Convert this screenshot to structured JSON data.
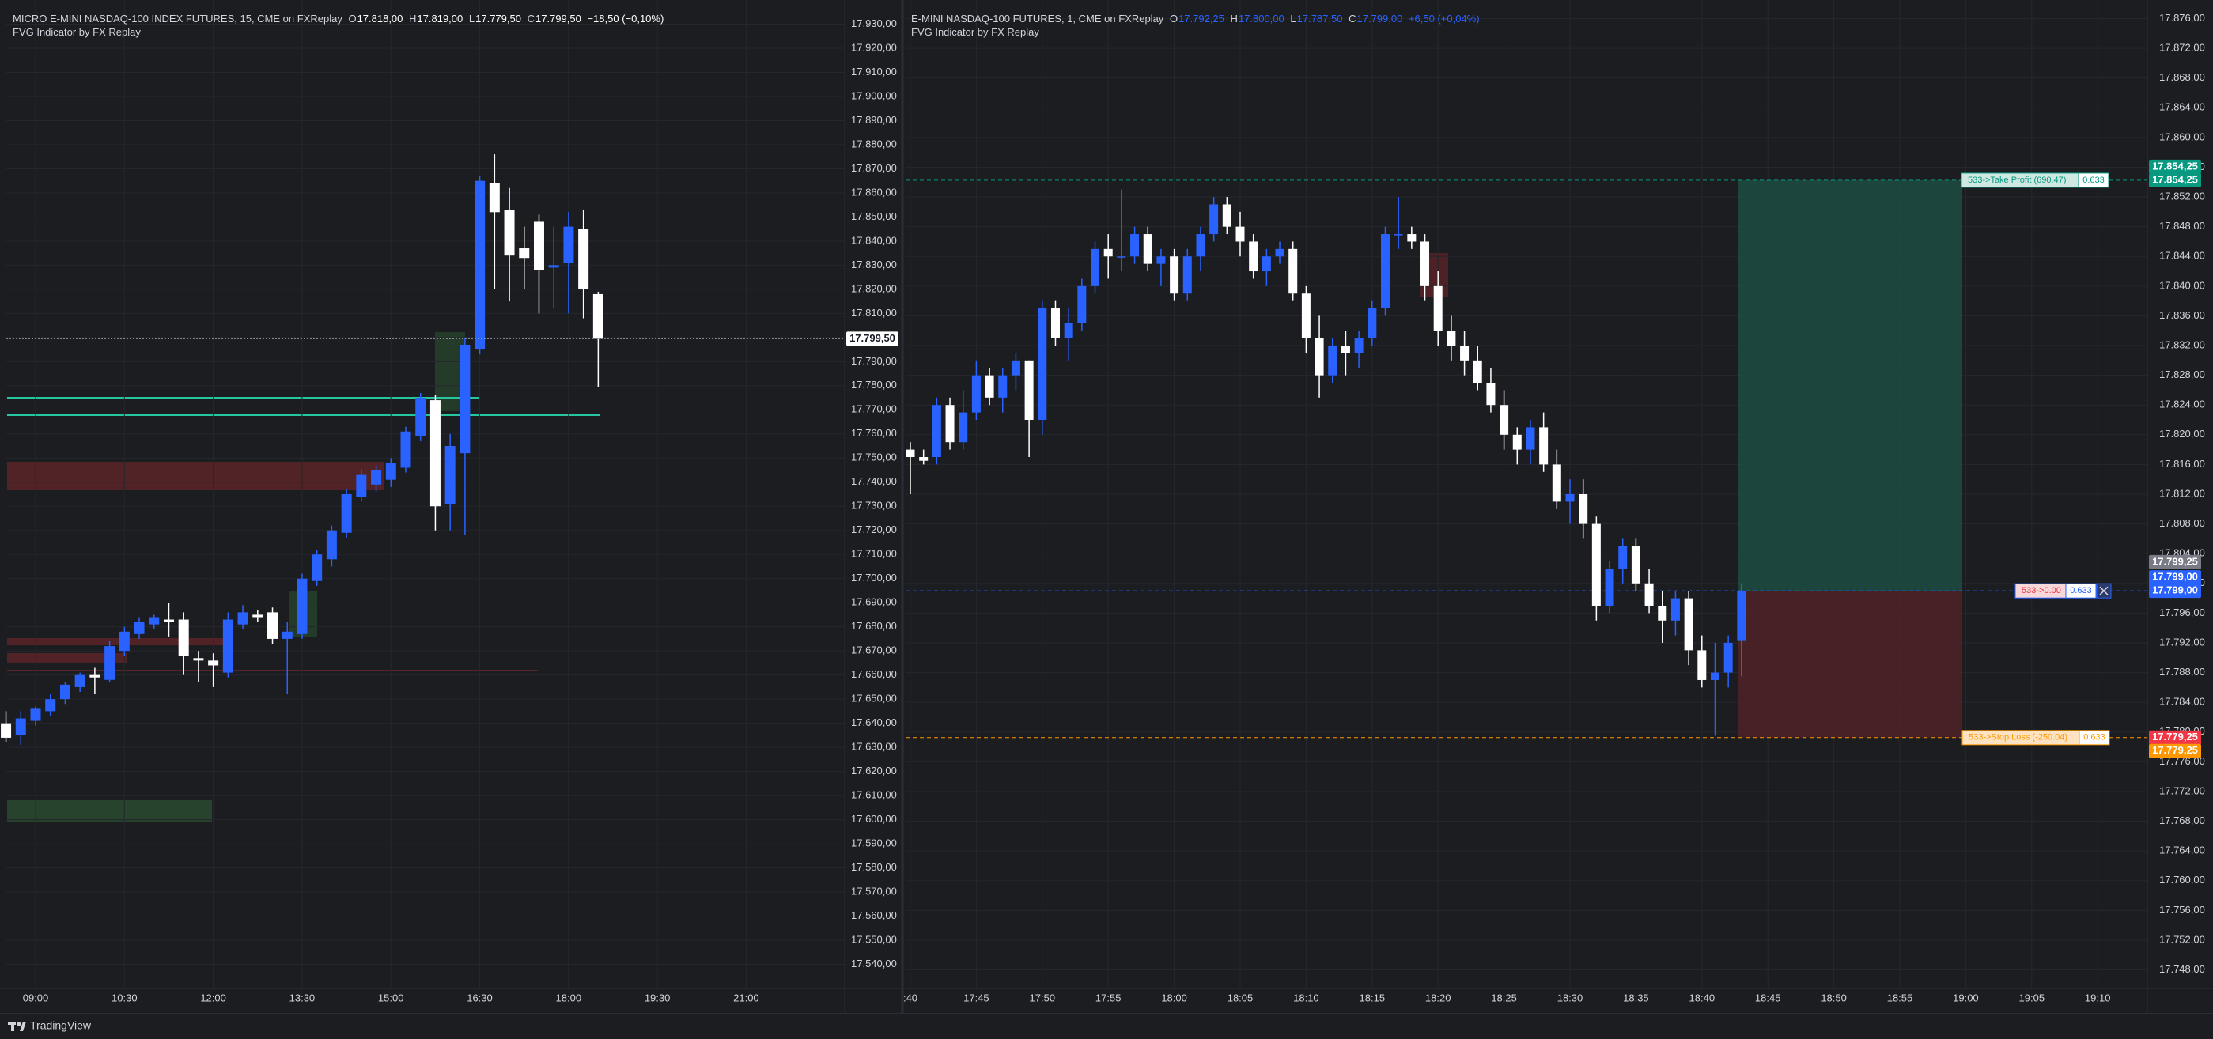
{
  "chart_data": [
    {
      "type": "candlestick",
      "title": "MICRO E-MINI NASDAQ-100 INDEX FUTURES, 15, CME on FXReplay",
      "ohlc": [
        [
          "O",
          "17.818,00"
        ],
        [
          "H",
          "17.819,00"
        ],
        [
          "L",
          "17.779,50"
        ],
        [
          "C",
          "17.799,50"
        ]
      ],
      "change": "−18,50 (−0,10%)",
      "indicator": "FVG Indicator by FX Replay",
      "up_color": "#2962ff",
      "down_color": "#ffffff",
      "value_color": "#ffffff",
      "time_labels": [
        "09:00",
        "10:30",
        "12:00",
        "13:30",
        "15:00",
        "16:30",
        "18:00",
        "19:30",
        "21:00"
      ],
      "candles": [
        [
          17640,
          17645,
          17632,
          17634
        ],
        [
          17635,
          17645,
          17631,
          17642
        ],
        [
          17641,
          17647,
          17639,
          17646
        ],
        [
          17645,
          17652,
          17643,
          17650
        ],
        [
          17650,
          17657,
          17648,
          17656
        ],
        [
          17655,
          17661,
          17653,
          17660
        ],
        [
          17660,
          17663,
          17652,
          17659
        ],
        [
          17658,
          17674,
          17657,
          17672
        ],
        [
          17670,
          17680,
          17668,
          17678
        ],
        [
          17677,
          17684,
          17675,
          17682
        ],
        [
          17681,
          17685,
          17679,
          17684
        ],
        [
          17683,
          17690,
          17676,
          17682
        ],
        [
          17683,
          17686,
          17660,
          17668
        ],
        [
          17667,
          17670,
          17657,
          17666
        ],
        [
          17666,
          17669,
          17655,
          17664
        ],
        [
          17661,
          17686,
          17659,
          17683
        ],
        [
          17681,
          17689,
          17679,
          17686
        ],
        [
          17685,
          17687,
          17682,
          17684
        ],
        [
          17686,
          17688,
          17673,
          17675
        ],
        [
          17675,
          17682,
          17652,
          17678
        ],
        [
          17677,
          17702,
          17675,
          17700
        ],
        [
          17699,
          17712,
          17697,
          17710
        ],
        [
          17708,
          17722,
          17705,
          17720
        ],
        [
          17719,
          17737,
          17717,
          17735
        ],
        [
          17734,
          17745,
          17732,
          17743
        ],
        [
          17739,
          17747,
          17736,
          17745
        ],
        [
          17741,
          17750,
          17738,
          17748
        ],
        [
          17746,
          17763,
          17744,
          17761
        ],
        [
          17759,
          17777,
          17757,
          17775
        ],
        [
          17774,
          17776,
          17720,
          17730
        ],
        [
          17731,
          17760,
          17720,
          17755
        ],
        [
          17752,
          17800,
          17718,
          17797
        ],
        [
          17795,
          17867,
          17793,
          17865
        ],
        [
          17864,
          17876,
          17820,
          17852
        ],
        [
          17853,
          17862,
          17815,
          17834
        ],
        [
          17837,
          17846,
          17820,
          17833
        ],
        [
          17848,
          17851,
          17810,
          17828
        ],
        [
          17829,
          17846,
          17812,
          17830
        ],
        [
          17831,
          17852,
          17810,
          17846
        ],
        [
          17845,
          17853,
          17808,
          17820
        ],
        [
          17818,
          17819,
          17779.5,
          17799.5
        ]
      ],
      "ylim": [
        17530,
        17940
      ],
      "yticks": [
        {
          "value": 17540,
          "label": "17.540,00"
        },
        {
          "value": 17550,
          "label": "17.550,00"
        },
        {
          "value": 17560,
          "label": "17.560,00"
        },
        {
          "value": 17570,
          "label": "17.570,00"
        },
        {
          "value": 17580,
          "label": "17.580,00"
        },
        {
          "value": 17590,
          "label": "17.590,00"
        },
        {
          "value": 17600,
          "label": "17.600,00"
        },
        {
          "value": 17610,
          "label": "17.610,00"
        },
        {
          "value": 17620,
          "label": "17.620,00"
        },
        {
          "value": 17630,
          "label": "17.630,00"
        },
        {
          "value": 17640,
          "label": "17.640,00"
        },
        {
          "value": 17650,
          "label": "17.650,00"
        },
        {
          "value": 17660,
          "label": "17.660,00"
        },
        {
          "value": 17670,
          "label": "17.670,00"
        },
        {
          "value": 17680,
          "label": "17.680,00"
        },
        {
          "value": 17690,
          "label": "17.690,00"
        },
        {
          "value": 17700,
          "label": "17.700,00"
        },
        {
          "value": 17710,
          "label": "17.710,00"
        },
        {
          "value": 17720,
          "label": "17.720,00"
        },
        {
          "value": 17730,
          "label": "17.730,00"
        },
        {
          "value": 17740,
          "label": "17.740,00"
        },
        {
          "value": 17750,
          "label": "17.750,00"
        },
        {
          "value": 17760,
          "label": "17.760,00"
        },
        {
          "value": 17770,
          "label": "17.770,00"
        },
        {
          "value": 17780,
          "label": "17.780,00"
        },
        {
          "value": 17790,
          "label": "17.790,00"
        },
        {
          "value": 17800,
          "label": "17.800,00"
        },
        {
          "value": 17810,
          "label": "17.810,00"
        },
        {
          "value": 17820,
          "label": "17.820,00"
        },
        {
          "value": 17830,
          "label": "17.830,00"
        },
        {
          "value": 17840,
          "label": "17.840,00"
        },
        {
          "value": 17850,
          "label": "17.850,00"
        },
        {
          "value": 17860,
          "label": "17.860,00"
        },
        {
          "value": 17870,
          "label": "17.870,00"
        },
        {
          "value": 17880,
          "label": "17.880,00"
        },
        {
          "value": 17890,
          "label": "17.890,00"
        },
        {
          "value": 17900,
          "label": "17.900,00"
        },
        {
          "value": 17910,
          "label": "17.910,00"
        },
        {
          "value": 17920,
          "label": "17.920,00"
        },
        {
          "value": 17930,
          "label": "17.930,00"
        }
      ],
      "price_badges": [
        {
          "value": 17799.5,
          "label": "17.799,50",
          "color": "#ffffff"
        }
      ]
    },
    {
      "type": "candlestick",
      "title": "E-MINI NASDAQ-100 FUTURES, 1, CME on FXReplay",
      "ohlc": [
        [
          "O",
          "17.792,25"
        ],
        [
          "H",
          "17.800,00"
        ],
        [
          "L",
          "17.787,50"
        ],
        [
          "C",
          "17.799,00"
        ]
      ],
      "change": "+6,50 (+0,04%)",
      "indicator": "FVG Indicator by FX Replay",
      "up_color": "#2962ff",
      "down_color": "#ffffff",
      "value_color": "#2962ff",
      "time_labels": [
        ":40",
        "17:45",
        "17:50",
        "17:55",
        "18:00",
        "18:05",
        "18:10",
        "18:15",
        "18:20",
        "18:25",
        "18:30",
        "18:35",
        "18:40",
        "18:45",
        "18:50",
        "18:55",
        "19:00",
        "19:05",
        "19:10"
      ],
      "candles": [
        [
          17818,
          17819,
          17812,
          17817
        ],
        [
          17817,
          17818,
          17816,
          17816.5
        ],
        [
          17817,
          17825,
          17816,
          17824
        ],
        [
          17824,
          17825,
          17818,
          17819
        ],
        [
          17819,
          17826,
          17818,
          17823
        ],
        [
          17823,
          17830,
          17822,
          17828
        ],
        [
          17828,
          17829,
          17824,
          17825
        ],
        [
          17825,
          17829,
          17823,
          17828
        ],
        [
          17828,
          17831,
          17826,
          17830
        ],
        [
          17830,
          17830,
          17817,
          17822
        ],
        [
          17822,
          17838,
          17820,
          17837
        ],
        [
          17837,
          17838,
          17832,
          17833
        ],
        [
          17833,
          17837,
          17830,
          17835
        ],
        [
          17835,
          17841,
          17834,
          17840
        ],
        [
          17840,
          17846,
          17839,
          17845
        ],
        [
          17845,
          17847,
          17841,
          17844
        ],
        [
          17844,
          17853,
          17842,
          17844
        ],
        [
          17844,
          17848,
          17843,
          17847
        ],
        [
          17847,
          17848,
          17842,
          17843
        ],
        [
          17843,
          17845,
          17840,
          17844
        ],
        [
          17844,
          17845,
          17838,
          17839
        ],
        [
          17839,
          17845,
          17838,
          17844
        ],
        [
          17844,
          17848,
          17842,
          17847
        ],
        [
          17847,
          17852,
          17846,
          17851
        ],
        [
          17851,
          17852,
          17847,
          17848
        ],
        [
          17848,
          17850,
          17844,
          17846
        ],
        [
          17846,
          17847,
          17841,
          17842
        ],
        [
          17842,
          17845,
          17840,
          17844
        ],
        [
          17844,
          17846,
          17843,
          17845
        ],
        [
          17845,
          17846,
          17838,
          17839
        ],
        [
          17839,
          17840,
          17831,
          17833
        ],
        [
          17833,
          17836,
          17825,
          17828
        ],
        [
          17828,
          17833,
          17827,
          17832
        ],
        [
          17832,
          17834,
          17828,
          17831
        ],
        [
          17831,
          17834,
          17829,
          17833
        ],
        [
          17833,
          17838,
          17832,
          17837
        ],
        [
          17837,
          17848,
          17836,
          17847
        ],
        [
          17847,
          17852,
          17845,
          17847
        ],
        [
          17847,
          17848,
          17845,
          17846
        ],
        [
          17846,
          17847,
          17838,
          17840
        ],
        [
          17840,
          17842,
          17832,
          17834
        ],
        [
          17834,
          17836,
          17830,
          17832
        ],
        [
          17832,
          17834,
          17828,
          17830
        ],
        [
          17830,
          17832,
          17826,
          17827
        ],
        [
          17827,
          17829,
          17823,
          17824
        ],
        [
          17824,
          17826,
          17818,
          17820
        ],
        [
          17820,
          17821,
          17816,
          17818
        ],
        [
          17818,
          17822,
          17816,
          17821
        ],
        [
          17821,
          17823,
          17815,
          17816
        ],
        [
          17816,
          17818,
          17810,
          17811
        ],
        [
          17811,
          17814,
          17808,
          17812
        ],
        [
          17812,
          17814,
          17806,
          17808
        ],
        [
          17808,
          17809,
          17795,
          17797
        ],
        [
          17797,
          17803,
          17796,
          17802
        ],
        [
          17802,
          17806,
          17800,
          17805
        ],
        [
          17805,
          17806,
          17799,
          17800
        ],
        [
          17800,
          17802,
          17796,
          17797
        ],
        [
          17797,
          17799,
          17792,
          17795
        ],
        [
          17795,
          17799,
          17793,
          17798
        ],
        [
          17798,
          17799,
          17789,
          17791
        ],
        [
          17791,
          17793,
          17786,
          17787
        ],
        [
          17787,
          17792,
          17779.5,
          17788
        ],
        [
          17788,
          17793,
          17786,
          17792
        ],
        [
          17792.25,
          17800,
          17787.5,
          17799
        ]
      ],
      "ylim": [
        17745.5,
        17878.5
      ],
      "yticks": [
        {
          "value": 17748,
          "label": "17.748,00"
        },
        {
          "value": 17752,
          "label": "17.752,00"
        },
        {
          "value": 17756,
          "label": "17.756,00"
        },
        {
          "value": 17760,
          "label": "17.760,00"
        },
        {
          "value": 17764,
          "label": "17.764,00"
        },
        {
          "value": 17768,
          "label": "17.768,00"
        },
        {
          "value": 17772,
          "label": "17.772,00"
        },
        {
          "value": 17776,
          "label": "17.776,00"
        },
        {
          "value": 17780,
          "label": "17.780,00"
        },
        {
          "value": 17784,
          "label": "17.784,00"
        },
        {
          "value": 17788,
          "label": "17.788,00"
        },
        {
          "value": 17792,
          "label": "17.792,00"
        },
        {
          "value": 17796,
          "label": "17.796,00"
        },
        {
          "value": 17800,
          "label": "17.800,00"
        },
        {
          "value": 17804,
          "label": "17.804,00"
        },
        {
          "value": 17808,
          "label": "17.808,00"
        },
        {
          "value": 17812,
          "label": "17.812,00"
        },
        {
          "value": 17816,
          "label": "17.816,00"
        },
        {
          "value": 17820,
          "label": "17.820,00"
        },
        {
          "value": 17824,
          "label": "17.824,00"
        },
        {
          "value": 17828,
          "label": "17.828,00"
        },
        {
          "value": 17832,
          "label": "17.832,00"
        },
        {
          "value": 17836,
          "label": "17.836,00"
        },
        {
          "value": 17840,
          "label": "17.840,00"
        },
        {
          "value": 17844,
          "label": "17.844,00"
        },
        {
          "value": 17848,
          "label": "17.848,00"
        },
        {
          "value": 17852,
          "label": "17.852,00"
        },
        {
          "value": 17856,
          "label": "17.856,00"
        },
        {
          "value": 17860,
          "label": "17.860,00"
        },
        {
          "value": 17864,
          "label": "17.864,00"
        },
        {
          "value": 17868,
          "label": "17.868,00"
        },
        {
          "value": 17872,
          "label": "17.872,00"
        },
        {
          "value": 17876,
          "label": "17.876,00"
        }
      ],
      "price_badges": [
        {
          "value": 17854.25,
          "label": "17.854,25",
          "color": "#089981"
        },
        {
          "value": 17854.25,
          "label": "17.854,25",
          "color": "#089981"
        },
        {
          "value": 17799.25,
          "label": "17.799,25",
          "color": "#787b86"
        },
        {
          "value": 17799,
          "label": "17.799,00",
          "color": "#2962ff"
        },
        {
          "value": 17799,
          "label": "17.799,00",
          "color": "#2962ff"
        },
        {
          "value": 17779.25,
          "label": "17.779,25",
          "color": "#f23645"
        },
        {
          "value": 17779.25,
          "label": "17.779,25",
          "color": "#ff9800"
        }
      ],
      "position": {
        "entry": 17799,
        "take_profit": 17854.25,
        "stop_loss": 17779.25,
        "tp_label": "533->Take Profit (690.47)",
        "tp_qty": "0.633",
        "entry_label": "533->0.00",
        "entry_qty": "0.633",
        "sl_label": "533->Stop Loss (-250.04)",
        "sl_qty": "0.633"
      }
    }
  ],
  "branding": "TradingView"
}
